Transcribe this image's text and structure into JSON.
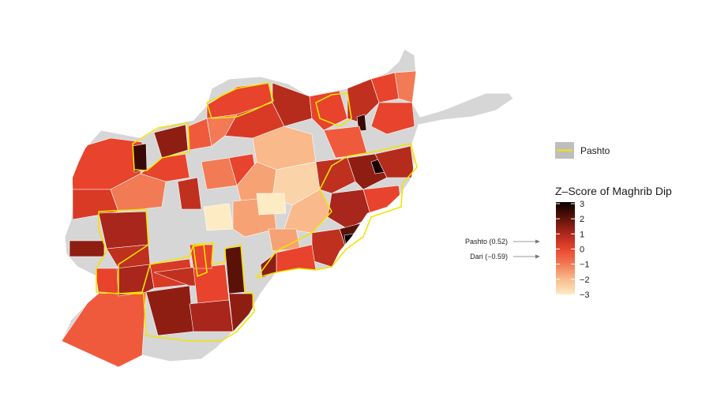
{
  "legend_outline": {
    "label": "Pashto",
    "line_color": "#f2e400",
    "swatch_fill": "#bebebe"
  },
  "legend_scale": {
    "title": "Z–Score of Maghrib Dip",
    "ticks": [
      "3",
      "2",
      "1",
      "0",
      "−1",
      "−2",
      "−3"
    ],
    "colors": [
      "#0a0000",
      "#5a1208",
      "#a8261b",
      "#e8432c",
      "#f27a55",
      "#f9b98a",
      "#fdebc4"
    ]
  },
  "annotations": [
    {
      "label": "Pashto (0.52)"
    },
    {
      "label": "Dari (−0.59)"
    }
  ],
  "colors": {
    "no_data": "#d6d6d6",
    "pashto_outline": "#f2e400",
    "district_border": "#ffffff"
  }
}
